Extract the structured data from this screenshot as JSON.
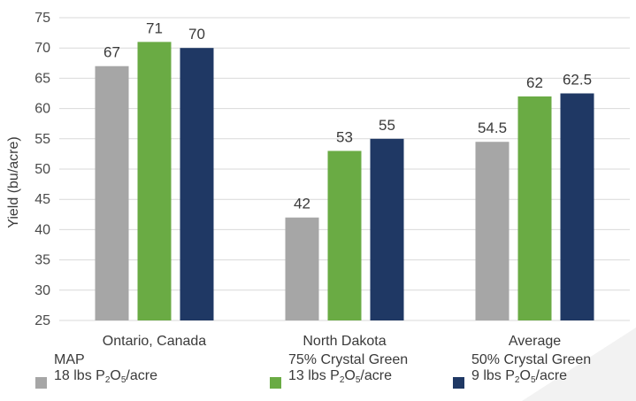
{
  "chart_data": {
    "type": "bar",
    "categories": [
      "Ontario, Canada",
      "North Dakota",
      "Average"
    ],
    "series": [
      {
        "name": "MAP",
        "rate": "18 lbs P₂O₅/acre",
        "color": "#a6a6a6",
        "values": [
          67,
          42,
          54.5
        ]
      },
      {
        "name": "75% Crystal Green",
        "rate": "13 lbs P₂O₅/acre",
        "color": "#6aab44",
        "values": [
          71,
          53,
          62
        ]
      },
      {
        "name": "50% Crystal Green",
        "rate": "9 lbs P₂O₅/acre",
        "color": "#1f3864",
        "values": [
          70,
          55,
          62.5
        ]
      }
    ],
    "data_labels": [
      [
        "67",
        "42",
        "54.5"
      ],
      [
        "71",
        "53",
        "62"
      ],
      [
        "70",
        "55",
        "62.5"
      ]
    ],
    "ylabel": "Yield (bu/acre)",
    "xlabel": "",
    "ylim": [
      25,
      75
    ],
    "yticks": [
      25,
      30,
      35,
      40,
      45,
      50,
      55,
      60,
      65,
      70,
      75
    ],
    "grid": true,
    "legend_position": "bottom"
  }
}
